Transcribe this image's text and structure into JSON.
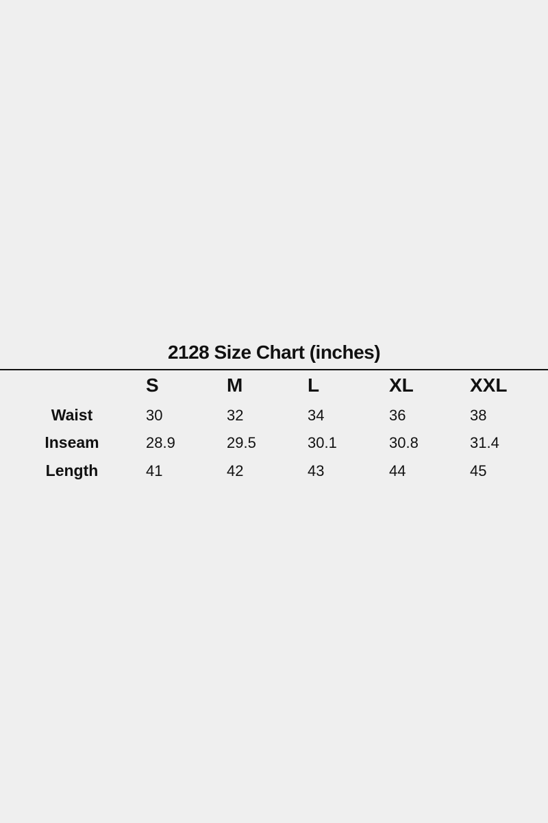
{
  "title": "2128 Size Chart (inches)",
  "sizes": [
    "S",
    "M",
    "L",
    "XL",
    "XXL"
  ],
  "rows": [
    {
      "label": "Waist",
      "values": [
        "30",
        "32",
        "34",
        "36",
        "38"
      ]
    },
    {
      "label": "Inseam",
      "values": [
        "28.9",
        "29.5",
        "30.1",
        "30.8",
        "31.4"
      ]
    },
    {
      "label": "Length",
      "values": [
        "41",
        "42",
        "43",
        "44",
        "45"
      ]
    }
  ]
}
